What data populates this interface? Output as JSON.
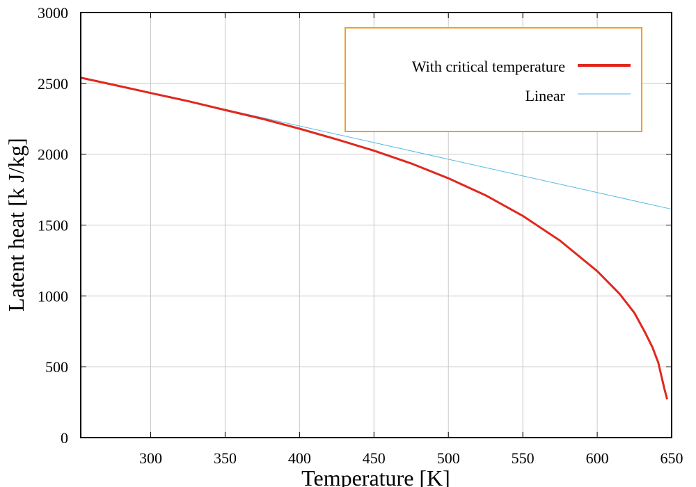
{
  "chart_data": {
    "type": "line",
    "title": "",
    "xlabel": "Temperature [K]",
    "ylabel": "Latent heat [k J/kg]",
    "xlim": [
      253,
      650
    ],
    "ylim": [
      0,
      3000
    ],
    "xticks": [
      300,
      350,
      400,
      450,
      500,
      550,
      600,
      650
    ],
    "xtick_labels": [
      "300",
      "350",
      "400",
      "450",
      "500",
      "550",
      "600",
      "650"
    ],
    "yticks": [
      0,
      500,
      1000,
      1500,
      2000,
      2500,
      3000
    ],
    "ytick_labels": [
      "0",
      "500",
      "1000",
      "1500",
      "2000",
      "2500",
      "3000"
    ],
    "grid": true,
    "legend_position": "top-right",
    "series": [
      {
        "name": "With critical temperature",
        "color": "#e0281e",
        "x": [
          253,
          275,
          300,
          325,
          350,
          375,
          400,
          425,
          450,
          475,
          500,
          525,
          550,
          575,
          600,
          615,
          625,
          632,
          637,
          641,
          643,
          645,
          647
        ],
        "y": [
          2540,
          2490,
          2432,
          2375,
          2312,
          2250,
          2180,
          2105,
          2025,
          1935,
          1830,
          1710,
          1565,
          1390,
          1175,
          1015,
          880,
          745,
          640,
          530,
          440,
          350,
          270
        ]
      },
      {
        "name": "Linear",
        "color": "#55b8e8",
        "x": [
          253,
          650
        ],
        "y": [
          2545,
          1612
        ]
      }
    ]
  }
}
